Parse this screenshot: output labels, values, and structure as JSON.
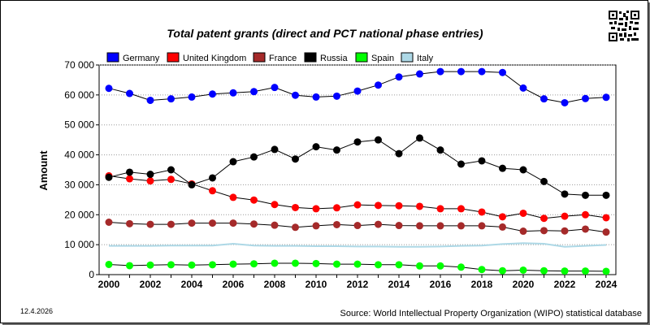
{
  "date_stamp": "12.4.2026",
  "source": "Source: World Intellectual Property Organization (WIPO) statistical database",
  "qr_icon": "qr-code-icon",
  "chart_data": {
    "type": "line",
    "title": "Total patent grants (direct and PCT national phase entries)",
    "xlabel": "",
    "ylabel": "Amount",
    "ylim": [
      0,
      70000
    ],
    "yticks": [
      0,
      10000,
      20000,
      30000,
      40000,
      50000,
      60000,
      70000
    ],
    "ytick_labels": [
      "0",
      "10 000",
      "20 000",
      "30 000",
      "40 000",
      "50 000",
      "60 000",
      "70 000"
    ],
    "x": [
      2000,
      2001,
      2002,
      2003,
      2004,
      2005,
      2006,
      2007,
      2008,
      2009,
      2010,
      2011,
      2012,
      2013,
      2014,
      2015,
      2016,
      2017,
      2018,
      2019,
      2020,
      2021,
      2022,
      2023,
      2024
    ],
    "xticks": [
      "2000",
      "2002",
      "2004",
      "2006",
      "2008",
      "2010",
      "2012",
      "2014",
      "2016",
      "2018",
      "2020",
      "2022",
      "2024"
    ],
    "grid": true,
    "legend_position": "top",
    "series": [
      {
        "name": "Germany",
        "color": "#0000ff",
        "markers": true,
        "values": [
          62200,
          60500,
          58200,
          58700,
          59300,
          60300,
          60700,
          61100,
          62500,
          59900,
          59300,
          59600,
          61300,
          63300,
          66000,
          67000,
          67800,
          67800,
          67800,
          67500,
          62300,
          58700,
          57400,
          58800,
          59200
        ]
      },
      {
        "name": "United Kingdom",
        "color": "#ff0000",
        "markers": true,
        "values": [
          33000,
          32000,
          31300,
          31800,
          30300,
          28000,
          25800,
          24900,
          23400,
          22400,
          22000,
          22300,
          23300,
          23100,
          23000,
          22800,
          22000,
          22000,
          20900,
          19300,
          20500,
          18800,
          19500,
          20000,
          19000
        ]
      },
      {
        "name": "France",
        "color": "#a52a2a",
        "markers": true,
        "values": [
          17500,
          17000,
          16800,
          16800,
          17200,
          17200,
          17200,
          16900,
          16500,
          15800,
          16300,
          16700,
          16400,
          16800,
          16400,
          16300,
          16300,
          16300,
          16300,
          15900,
          14500,
          14700,
          14600,
          15200,
          14200
        ]
      },
      {
        "name": "Russia",
        "color": "#000000",
        "markers": true,
        "values": [
          32500,
          34200,
          33500,
          35000,
          30000,
          32300,
          37700,
          39300,
          41800,
          38600,
          42700,
          41600,
          44300,
          45000,
          40400,
          45600,
          41600,
          36900,
          38000,
          35500,
          35000,
          31100,
          26900,
          26500,
          26500
        ]
      },
      {
        "name": "Spain",
        "color": "#00ff00",
        "markers": true,
        "values": [
          3400,
          3000,
          3200,
          3300,
          3200,
          3300,
          3500,
          3600,
          3800,
          3800,
          3700,
          3500,
          3500,
          3300,
          3300,
          2900,
          2900,
          2500,
          1700,
          1300,
          1500,
          1300,
          1200,
          1200,
          1100
        ]
      },
      {
        "name": "Italy",
        "color": "#add8e6",
        "markers": false,
        "values": [
          9600,
          9600,
          9600,
          9700,
          9700,
          9700,
          10300,
          9700,
          9600,
          9600,
          9500,
          9500,
          9400,
          9400,
          9300,
          9300,
          9400,
          9600,
          9700,
          10200,
          10500,
          10300,
          9300,
          9600,
          9900
        ]
      }
    ]
  }
}
